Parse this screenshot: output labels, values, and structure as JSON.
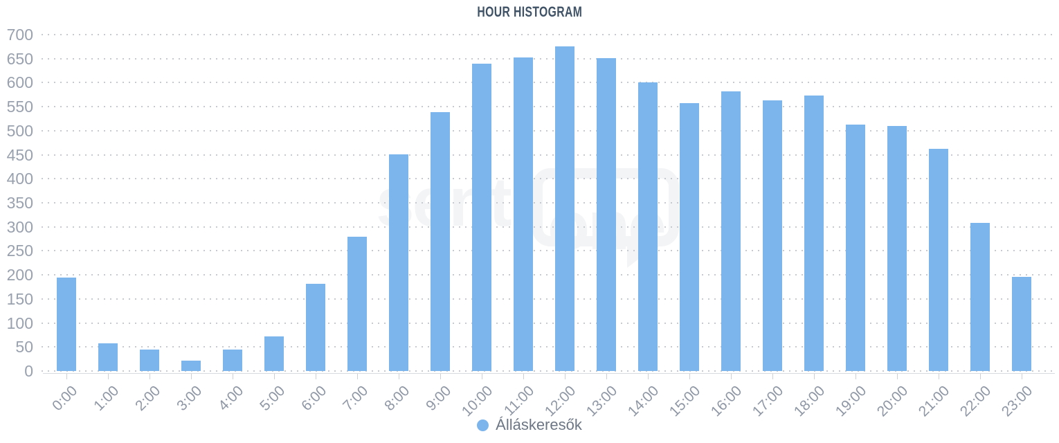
{
  "title": "HOUR HISTOGRAM",
  "watermark": {
    "text_left": "senti",
    "text_right": "one"
  },
  "legend": {
    "label": "Álláskeresők",
    "marker_color": "#7cb5ec"
  },
  "colors": {
    "bar": "#7cb5ec",
    "title": "#3f5266",
    "axis_labels": "#99a1ae",
    "grid_dots": "#c6cad0",
    "axis_line": "#d7dade",
    "legend_text": "#6d7684",
    "watermark": "#f3f4f6"
  },
  "chart_data": {
    "type": "bar",
    "title": "HOUR HISTOGRAM",
    "categories": [
      "0:00",
      "1:00",
      "2:00",
      "3:00",
      "4:00",
      "5:00",
      "6:00",
      "7:00",
      "8:00",
      "9:00",
      "10:00",
      "11:00",
      "12:00",
      "13:00",
      "14:00",
      "15:00",
      "16:00",
      "17:00",
      "18:00",
      "19:00",
      "20:00",
      "21:00",
      "22:00",
      "23:00"
    ],
    "series": [
      {
        "name": "Álláskeresők",
        "values": [
          195,
          57,
          45,
          21,
          44,
          72,
          182,
          280,
          451,
          538,
          640,
          652,
          675,
          651,
          600,
          558,
          582,
          563,
          573,
          513,
          510,
          462,
          308,
          196
        ]
      }
    ],
    "xlabel": "",
    "ylabel": "",
    "ylim": [
      0,
      700
    ],
    "ytick_step": 50,
    "grid": "dotted-horizontal",
    "legend_position": "bottom-center"
  }
}
